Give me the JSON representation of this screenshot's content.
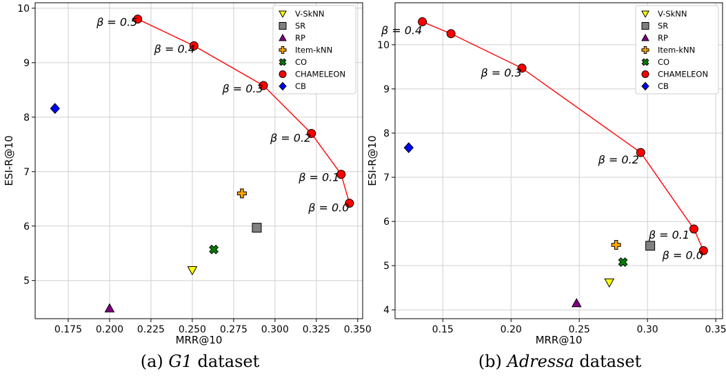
{
  "chart_data": [
    {
      "type": "scatter",
      "caption_prefix": "(a) ",
      "caption_name": "G1",
      "caption_suffix": " dataset",
      "xlabel": "MRR@10",
      "ylabel": "ESI-R@10",
      "xlim": [
        0.155,
        0.353
      ],
      "ylim": [
        4.3,
        10.1
      ],
      "xticks": [
        "0.175",
        "0.200",
        "0.225",
        "0.250",
        "0.275",
        "0.300",
        "0.325",
        "0.350"
      ],
      "xtick_values": [
        0.175,
        0.2,
        0.225,
        0.25,
        0.275,
        0.3,
        0.325,
        0.35
      ],
      "yticks": [
        "5",
        "6",
        "7",
        "8",
        "9",
        "10"
      ],
      "ytick_values": [
        5,
        6,
        7,
        8,
        9,
        10
      ],
      "grid": true,
      "legend_position": "top-right",
      "series": [
        {
          "name": "V-SkNN",
          "marker": "triangle-down",
          "color": "#ffff00",
          "points": [
            [
              0.25,
              5.19
            ]
          ]
        },
        {
          "name": "SR",
          "marker": "square",
          "color": "#808080",
          "points": [
            [
              0.289,
              5.97
            ]
          ]
        },
        {
          "name": "RP",
          "marker": "triangle-up",
          "color": "#800080",
          "points": [
            [
              0.2,
              4.49
            ]
          ]
        },
        {
          "name": "Item-kNN",
          "marker": "plus",
          "color": "#ffa500",
          "points": [
            [
              0.28,
              6.6
            ]
          ]
        },
        {
          "name": "CO",
          "marker": "x",
          "color": "#008000",
          "points": [
            [
              0.263,
              5.57
            ]
          ]
        },
        {
          "name": "CHAMELEON",
          "marker": "circle",
          "color": "#ff0000",
          "line": true,
          "points": [
            [
              0.217,
              9.8
            ],
            [
              0.251,
              9.31
            ],
            [
              0.293,
              8.58
            ],
            [
              0.322,
              7.7
            ],
            [
              0.34,
              6.95
            ],
            [
              0.345,
              6.42
            ]
          ]
        },
        {
          "name": "CB",
          "marker": "diamond",
          "color": "#0000ff",
          "points": [
            [
              0.167,
              8.16
            ]
          ]
        }
      ],
      "annotations": [
        {
          "text": "β = 0.5",
          "x": 0.217,
          "y": 9.8
        },
        {
          "text": "β = 0.4",
          "x": 0.251,
          "y": 9.31
        },
        {
          "text": "β = 0.3",
          "x": 0.293,
          "y": 8.58
        },
        {
          "text": "β = 0.2",
          "x": 0.322,
          "y": 7.7
        },
        {
          "text": "β = 0.1",
          "x": 0.34,
          "y": 6.95
        },
        {
          "text": "β = 0.0",
          "x": 0.345,
          "y": 6.42
        }
      ]
    },
    {
      "type": "scatter",
      "caption_prefix": "(b) ",
      "caption_name": "Adressa",
      "caption_suffix": " dataset",
      "xlabel": "MRR@10",
      "ylabel": "ESI-R@10",
      "xlim": [
        0.115,
        0.355
      ],
      "ylim": [
        3.8,
        10.95
      ],
      "xticks": [
        "0.15",
        "0.20",
        "0.25",
        "0.30",
        "0.35"
      ],
      "xtick_values": [
        0.15,
        0.2,
        0.25,
        0.3,
        0.35
      ],
      "yticks": [
        "4",
        "5",
        "6",
        "7",
        "8",
        "9",
        "10"
      ],
      "ytick_values": [
        4,
        5,
        6,
        7,
        8,
        9,
        10
      ],
      "grid": true,
      "legend_position": "top-right",
      "series": [
        {
          "name": "V-SkNN",
          "marker": "triangle-down",
          "color": "#ffff00",
          "points": [
            [
              0.272,
              4.62
            ]
          ]
        },
        {
          "name": "SR",
          "marker": "square",
          "color": "#808080",
          "points": [
            [
              0.302,
              5.45
            ]
          ]
        },
        {
          "name": "RP",
          "marker": "triangle-up",
          "color": "#800080",
          "points": [
            [
              0.248,
              4.15
            ]
          ]
        },
        {
          "name": "Item-kNN",
          "marker": "plus",
          "color": "#ffa500",
          "points": [
            [
              0.277,
              5.47
            ]
          ]
        },
        {
          "name": "CO",
          "marker": "x",
          "color": "#008000",
          "points": [
            [
              0.282,
              5.08
            ]
          ]
        },
        {
          "name": "CHAMELEON",
          "marker": "circle",
          "color": "#ff0000",
          "line": true,
          "points": [
            [
              0.135,
              10.52
            ],
            [
              0.156,
              10.25
            ],
            [
              0.208,
              9.47
            ],
            [
              0.295,
              7.56
            ],
            [
              0.334,
              5.83
            ],
            [
              0.341,
              5.34
            ]
          ]
        },
        {
          "name": "CB",
          "marker": "diamond",
          "color": "#0000ff",
          "points": [
            [
              0.125,
              7.67
            ]
          ]
        }
      ],
      "annotations": [
        {
          "text": "β = 0.4",
          "x": 0.135,
          "y": 10.52
        },
        {
          "text": "β = 0.3",
          "x": 0.208,
          "y": 9.47
        },
        {
          "text": "β = 0.2",
          "x": 0.295,
          "y": 7.56
        },
        {
          "text": "β = 0.1",
          "x": 0.334,
          "y": 5.83
        },
        {
          "text": "β = 0.0",
          "x": 0.341,
          "y": 5.34
        }
      ]
    }
  ]
}
